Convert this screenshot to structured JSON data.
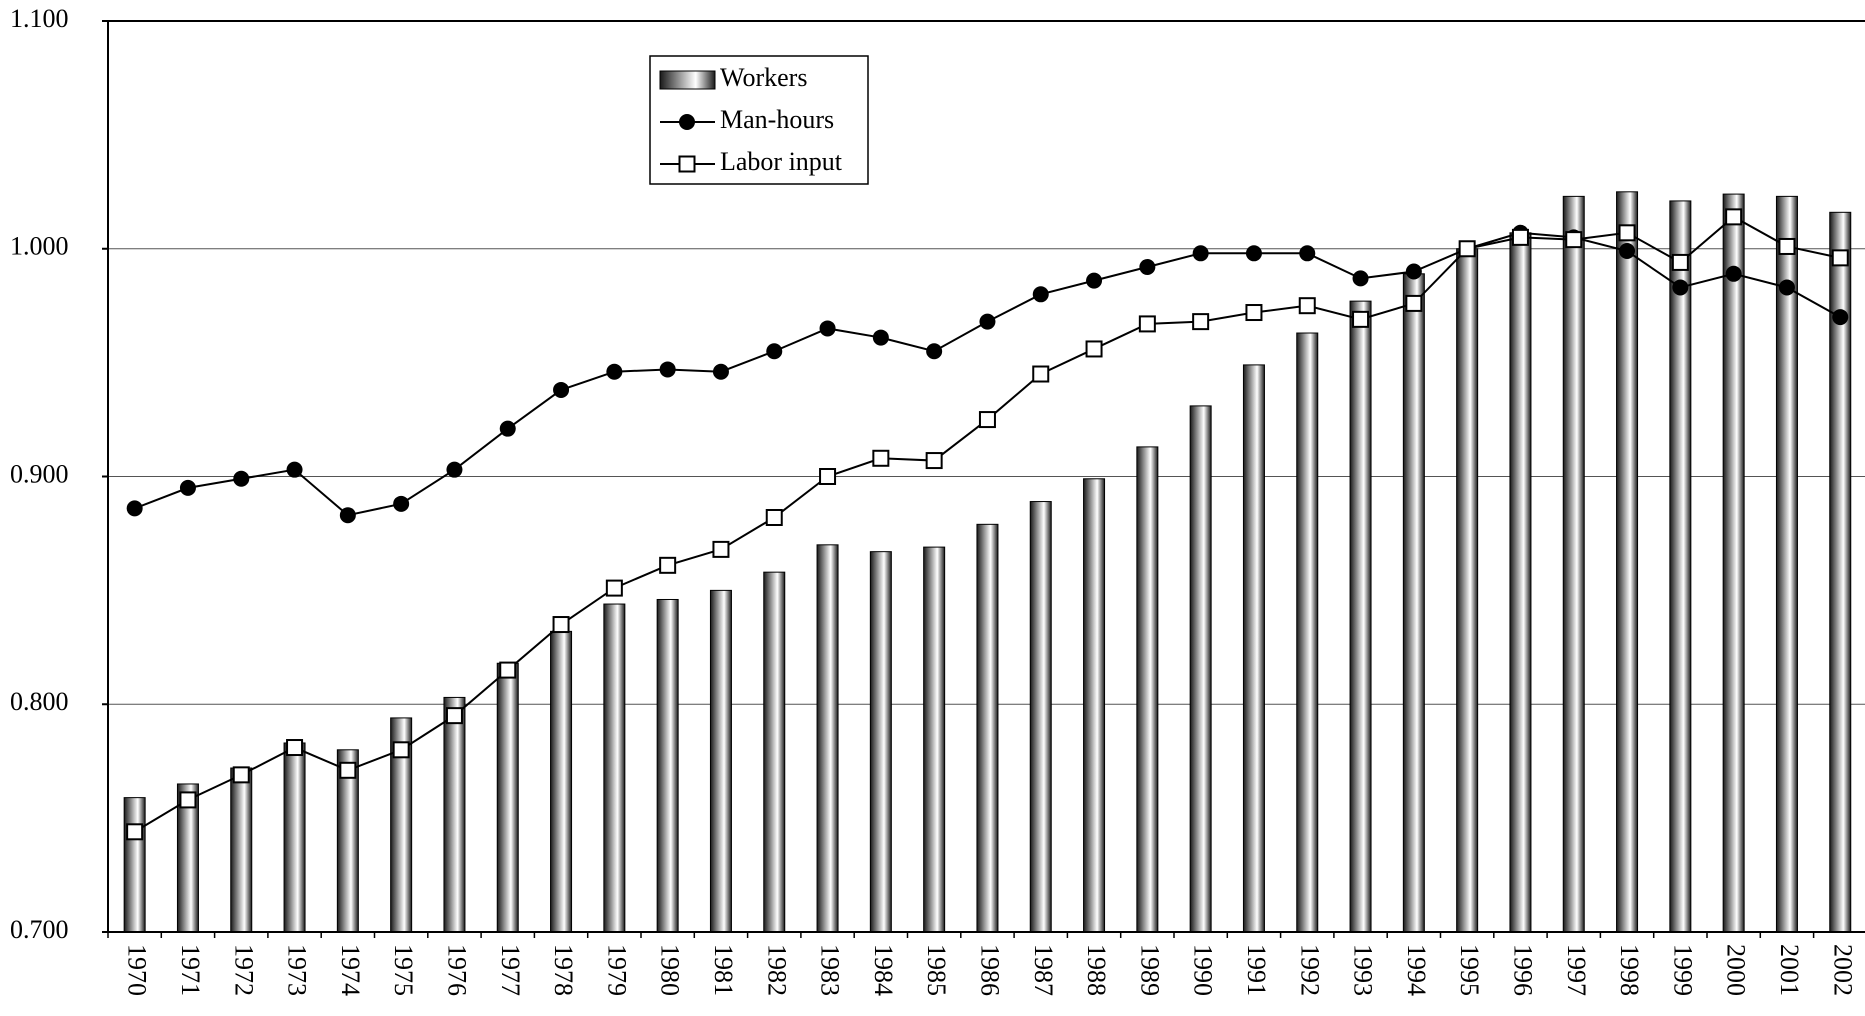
{
  "chart_data": {
    "type": "bar-line",
    "categories": [
      "1970",
      "1971",
      "1972",
      "1973",
      "1974",
      "1975",
      "1976",
      "1977",
      "1978",
      "1979",
      "1980",
      "1981",
      "1982",
      "1983",
      "1984",
      "1985",
      "1986",
      "1987",
      "1988",
      "1989",
      "1990",
      "1991",
      "1992",
      "1993",
      "1994",
      "1995",
      "1996",
      "1997",
      "1998",
      "1999",
      "2000",
      "2001",
      "2002"
    ],
    "series": [
      {
        "name": "Workers",
        "type": "bar",
        "color": "#1a1a1a",
        "values": [
          0.759,
          0.765,
          0.772,
          0.783,
          0.78,
          0.794,
          0.803,
          0.818,
          0.832,
          0.844,
          0.846,
          0.85,
          0.858,
          0.87,
          0.867,
          0.869,
          0.879,
          0.889,
          0.899,
          0.913,
          0.931,
          0.949,
          0.963,
          0.977,
          0.989,
          1.0,
          1.007,
          1.023,
          1.025,
          1.021,
          1.024,
          1.023,
          1.016
        ]
      },
      {
        "name": "Man-hours",
        "type": "line",
        "marker": "circle",
        "color": "#000000",
        "values": [
          0.886,
          0.895,
          0.899,
          0.903,
          0.883,
          0.888,
          0.903,
          0.921,
          0.938,
          0.946,
          0.947,
          0.946,
          0.955,
          0.965,
          0.961,
          0.955,
          0.968,
          0.98,
          0.986,
          0.992,
          0.998,
          0.998,
          0.998,
          0.987,
          0.99,
          1.0,
          1.007,
          1.005,
          0.999,
          0.983,
          0.989,
          0.983,
          0.97
        ]
      },
      {
        "name": "Labor input",
        "type": "line",
        "marker": "square",
        "color": "#000000",
        "values": [
          0.744,
          0.758,
          0.769,
          0.781,
          0.771,
          0.78,
          0.795,
          0.815,
          0.835,
          0.851,
          0.861,
          0.868,
          0.882,
          0.9,
          0.908,
          0.907,
          0.925,
          0.945,
          0.956,
          0.967,
          0.968,
          0.972,
          0.975,
          0.969,
          0.976,
          1.0,
          1.005,
          1.004,
          1.007,
          0.994,
          1.014,
          1.001,
          0.996
        ]
      }
    ],
    "ylim": [
      0.7,
      1.1
    ],
    "yticks": [
      {
        "value": 0.7,
        "label": "0.700"
      },
      {
        "value": 0.8,
        "label": "0.800"
      },
      {
        "value": 0.9,
        "label": "0.900"
      },
      {
        "value": 1.0,
        "label": "1.000"
      },
      {
        "value": 1.1,
        "label": "1.100"
      }
    ],
    "grid": true,
    "legend": "top-center"
  }
}
